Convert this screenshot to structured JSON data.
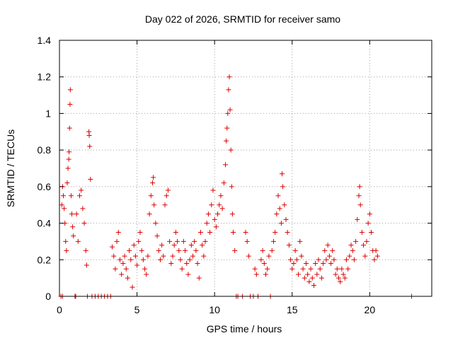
{
  "chart_data": {
    "type": "scatter",
    "title": "Day 022 of 2026, SRMTID for receiver samo",
    "xlabel": "GPS time / hours",
    "ylabel": "SRMTID / TECUs",
    "xlim": [
      0,
      24
    ],
    "ylim": [
      0,
      1.4
    ],
    "xticks": [
      0,
      5,
      10,
      15,
      20
    ],
    "yticks": [
      0,
      0.2,
      0.4,
      0.6,
      0.8,
      1,
      1.2,
      1.4
    ],
    "xtick_labels": [
      "0",
      "5",
      "10",
      "15",
      "20"
    ],
    "ytick_labels": [
      "0",
      "0.2",
      "0.4",
      "0.6",
      "0.8",
      "1",
      "1.2",
      "1.4"
    ],
    "grid": true,
    "marker": "+",
    "color": "#dd0000",
    "series": [
      {
        "name": "SRMTID",
        "points": [
          [
            0.1,
            0.0
          ],
          [
            0.2,
            0.0
          ],
          [
            0.15,
            0.5
          ],
          [
            0.2,
            0.6
          ],
          [
            0.25,
            0.55
          ],
          [
            0.3,
            0.48
          ],
          [
            0.35,
            0.4
          ],
          [
            0.4,
            0.3
          ],
          [
            0.45,
            0.25
          ],
          [
            0.5,
            0.62
          ],
          [
            0.55,
            0.7
          ],
          [
            0.6,
            0.75
          ],
          [
            0.62,
            0.79
          ],
          [
            0.65,
            0.92
          ],
          [
            0.68,
            1.05
          ],
          [
            0.7,
            1.13
          ],
          [
            0.75,
            0.55
          ],
          [
            0.8,
            0.45
          ],
          [
            0.85,
            0.38
          ],
          [
            0.9,
            0.33
          ],
          [
            1.0,
            0.0
          ],
          [
            1.05,
            0.0
          ],
          [
            1.1,
            0.45
          ],
          [
            1.2,
            0.3
          ],
          [
            1.3,
            0.55
          ],
          [
            1.4,
            0.58
          ],
          [
            1.5,
            0.48
          ],
          [
            1.6,
            0.4
          ],
          [
            1.7,
            0.25
          ],
          [
            1.75,
            0.17
          ],
          [
            1.9,
            0.9
          ],
          [
            1.92,
            0.88
          ],
          [
            1.95,
            0.82
          ],
          [
            2.0,
            0.64
          ],
          [
            1.8,
            0.0
          ],
          [
            2.1,
            0.0
          ],
          [
            2.3,
            0.0
          ],
          [
            2.5,
            0.0
          ],
          [
            2.7,
            0.0
          ],
          [
            2.9,
            0.0
          ],
          [
            3.1,
            0.0
          ],
          [
            3.3,
            0.0
          ],
          [
            3.4,
            0.27
          ],
          [
            3.5,
            0.22
          ],
          [
            3.6,
            0.15
          ],
          [
            3.7,
            0.3
          ],
          [
            3.8,
            0.35
          ],
          [
            3.9,
            0.2
          ],
          [
            4.0,
            0.12
          ],
          [
            4.1,
            0.18
          ],
          [
            4.2,
            0.22
          ],
          [
            4.3,
            0.15
          ],
          [
            4.4,
            0.1
          ],
          [
            4.5,
            0.25
          ],
          [
            4.6,
            0.2
          ],
          [
            4.7,
            0.05
          ],
          [
            4.8,
            0.28
          ],
          [
            4.9,
            0.22
          ],
          [
            5.0,
            0.17
          ],
          [
            5.1,
            0.3
          ],
          [
            5.2,
            0.35
          ],
          [
            5.3,
            0.25
          ],
          [
            5.4,
            0.2
          ],
          [
            5.5,
            0.15
          ],
          [
            5.6,
            0.12
          ],
          [
            5.7,
            0.22
          ],
          [
            5.8,
            0.45
          ],
          [
            5.9,
            0.55
          ],
          [
            6.0,
            0.62
          ],
          [
            6.05,
            0.65
          ],
          [
            6.1,
            0.5
          ],
          [
            6.2,
            0.4
          ],
          [
            6.3,
            0.33
          ],
          [
            6.4,
            0.25
          ],
          [
            6.5,
            0.2
          ],
          [
            6.6,
            0.28
          ],
          [
            6.7,
            0.22
          ],
          [
            6.8,
            0.5
          ],
          [
            6.9,
            0.55
          ],
          [
            7.0,
            0.58
          ],
          [
            7.1,
            0.3
          ],
          [
            7.2,
            0.18
          ],
          [
            7.3,
            0.22
          ],
          [
            7.4,
            0.28
          ],
          [
            7.5,
            0.35
          ],
          [
            7.6,
            0.3
          ],
          [
            7.7,
            0.25
          ],
          [
            7.8,
            0.2
          ],
          [
            7.9,
            0.15
          ],
          [
            8.0,
            0.3
          ],
          [
            8.1,
            0.25
          ],
          [
            8.2,
            0.18
          ],
          [
            8.3,
            0.12
          ],
          [
            8.4,
            0.2
          ],
          [
            8.5,
            0.28
          ],
          [
            8.6,
            0.22
          ],
          [
            8.7,
            0.3
          ],
          [
            8.8,
            0.25
          ],
          [
            8.9,
            0.18
          ],
          [
            9.0,
            0.1
          ],
          [
            9.1,
            0.35
          ],
          [
            9.2,
            0.28
          ],
          [
            9.3,
            0.22
          ],
          [
            9.4,
            0.3
          ],
          [
            9.5,
            0.4
          ],
          [
            9.6,
            0.45
          ],
          [
            9.7,
            0.35
          ],
          [
            9.8,
            0.5
          ],
          [
            9.9,
            0.58
          ],
          [
            10.0,
            0.42
          ],
          [
            10.1,
            0.38
          ],
          [
            10.2,
            0.45
          ],
          [
            10.3,
            0.5
          ],
          [
            10.4,
            0.55
          ],
          [
            10.5,
            0.48
          ],
          [
            10.6,
            0.62
          ],
          [
            10.7,
            0.72
          ],
          [
            10.75,
            0.85
          ],
          [
            10.8,
            0.92
          ],
          [
            10.85,
            1.0
          ],
          [
            10.9,
            1.13
          ],
          [
            10.95,
            1.2
          ],
          [
            11.0,
            1.02
          ],
          [
            11.05,
            0.8
          ],
          [
            11.1,
            0.6
          ],
          [
            11.15,
            0.45
          ],
          [
            11.2,
            0.35
          ],
          [
            11.3,
            0.25
          ],
          [
            11.4,
            0.0
          ],
          [
            11.5,
            0.0
          ],
          [
            11.8,
            0.0
          ],
          [
            12.0,
            0.35
          ],
          [
            12.1,
            0.3
          ],
          [
            12.2,
            0.22
          ],
          [
            12.3,
            0.0
          ],
          [
            12.5,
            0.0
          ],
          [
            12.6,
            0.15
          ],
          [
            12.7,
            0.12
          ],
          [
            12.8,
            0.0
          ],
          [
            13.0,
            0.2
          ],
          [
            13.1,
            0.25
          ],
          [
            13.2,
            0.18
          ],
          [
            13.3,
            0.12
          ],
          [
            13.4,
            0.15
          ],
          [
            13.5,
            0.22
          ],
          [
            13.6,
            0.0
          ],
          [
            13.7,
            0.25
          ],
          [
            13.8,
            0.3
          ],
          [
            13.9,
            0.35
          ],
          [
            14.0,
            0.45
          ],
          [
            14.1,
            0.55
          ],
          [
            14.2,
            0.48
          ],
          [
            14.3,
            0.4
          ],
          [
            14.35,
            0.67
          ],
          [
            14.4,
            0.6
          ],
          [
            14.5,
            0.5
          ],
          [
            14.6,
            0.42
          ],
          [
            14.7,
            0.35
          ],
          [
            14.8,
            0.28
          ],
          [
            14.9,
            0.2
          ],
          [
            15.0,
            0.15
          ],
          [
            15.1,
            0.18
          ],
          [
            15.2,
            0.25
          ],
          [
            15.3,
            0.2
          ],
          [
            15.4,
            0.12
          ],
          [
            15.5,
            0.3
          ],
          [
            15.6,
            0.22
          ],
          [
            15.7,
            0.15
          ],
          [
            15.8,
            0.1
          ],
          [
            15.9,
            0.18
          ],
          [
            16.0,
            0.12
          ],
          [
            16.1,
            0.08
          ],
          [
            16.2,
            0.15
          ],
          [
            16.3,
            0.1
          ],
          [
            16.4,
            0.06
          ],
          [
            16.5,
            0.18
          ],
          [
            16.6,
            0.12
          ],
          [
            16.7,
            0.2
          ],
          [
            16.8,
            0.15
          ],
          [
            16.9,
            0.1
          ],
          [
            17.0,
            0.18
          ],
          [
            17.1,
            0.25
          ],
          [
            17.2,
            0.2
          ],
          [
            17.3,
            0.28
          ],
          [
            17.4,
            0.22
          ],
          [
            17.5,
            0.18
          ],
          [
            17.6,
            0.25
          ],
          [
            17.7,
            0.2
          ],
          [
            17.8,
            0.12
          ],
          [
            17.9,
            0.15
          ],
          [
            18.0,
            0.1
          ],
          [
            18.1,
            0.08
          ],
          [
            18.2,
            0.15
          ],
          [
            18.3,
            0.12
          ],
          [
            18.4,
            0.1
          ],
          [
            18.5,
            0.2
          ],
          [
            18.6,
            0.15
          ],
          [
            18.7,
            0.22
          ],
          [
            18.8,
            0.28
          ],
          [
            18.9,
            0.25
          ],
          [
            19.0,
            0.2
          ],
          [
            19.1,
            0.3
          ],
          [
            19.2,
            0.42
          ],
          [
            19.3,
            0.55
          ],
          [
            19.35,
            0.6
          ],
          [
            19.4,
            0.5
          ],
          [
            19.5,
            0.35
          ],
          [
            19.6,
            0.28
          ],
          [
            19.7,
            0.22
          ],
          [
            19.8,
            0.3
          ],
          [
            19.9,
            0.4
          ],
          [
            20.0,
            0.45
          ],
          [
            20.1,
            0.35
          ],
          [
            20.2,
            0.25
          ],
          [
            20.3,
            0.2
          ],
          [
            20.4,
            0.25
          ],
          [
            20.5,
            0.22
          ],
          [
            22.7,
            0.0
          ]
        ]
      }
    ]
  }
}
